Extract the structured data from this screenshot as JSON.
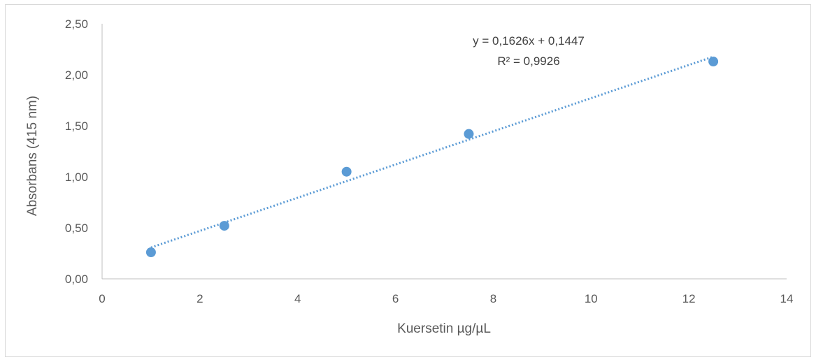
{
  "chart_data": {
    "type": "scatter",
    "title": "",
    "xlabel": "Kuersetin µg/µL",
    "ylabel": "Absorbans (415 nm)",
    "xlim": [
      0,
      14
    ],
    "ylim": [
      0,
      2.5
    ],
    "x_ticks": [
      "0",
      "2",
      "4",
      "6",
      "8",
      "10",
      "12",
      "14"
    ],
    "y_ticks": [
      "0,00",
      "0,50",
      "1,00",
      "1,50",
      "2,00",
      "2,50"
    ],
    "grid": false,
    "legend": "none",
    "series": [
      {
        "x": [
          1,
          2.5,
          5,
          7.5,
          12.5
        ],
        "y": [
          0.26,
          0.52,
          1.05,
          1.42,
          2.13
        ],
        "color": "#5B9BD5"
      }
    ],
    "trendline": {
      "kind": "linear",
      "slope": 0.1626,
      "intercept": 0.1447,
      "x_range": [
        1,
        12.5
      ],
      "style": "dotted",
      "color": "#5B9BD5"
    },
    "annotations": {
      "equation": "y = 0,1626x + 0,1447",
      "r_squared": "R² = 0,9926"
    }
  }
}
